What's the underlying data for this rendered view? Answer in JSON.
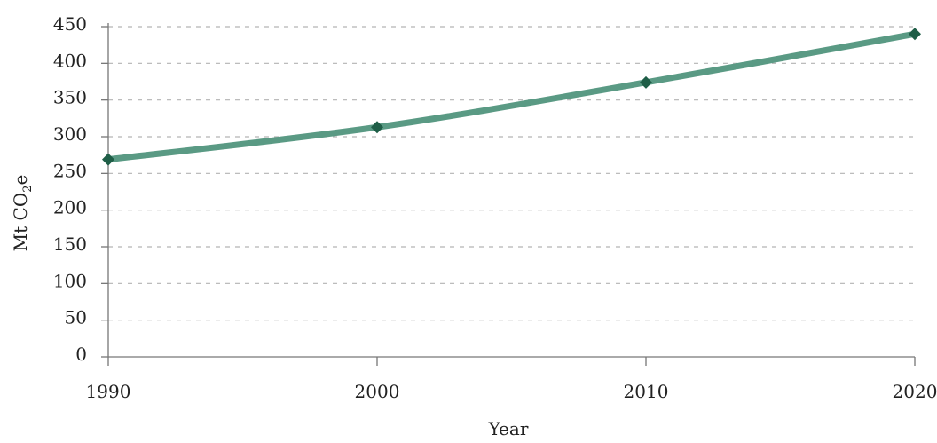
{
  "chart_data": {
    "type": "line",
    "title": "",
    "xlabel": "Year",
    "ylabel_main": "Mt CO",
    "ylabel_sub": "2",
    "ylabel_end": "e",
    "x": [
      1990,
      2000,
      2010,
      2020
    ],
    "x_tick_labels": [
      "1990",
      "2000",
      "2010",
      "2020"
    ],
    "y_ticks": [
      0,
      50,
      100,
      150,
      200,
      250,
      300,
      350,
      400,
      450
    ],
    "y_tick_labels": [
      "0",
      "50",
      "100",
      "150",
      "200",
      "250",
      "300",
      "350",
      "400",
      "450"
    ],
    "xlim": [
      1990,
      2020
    ],
    "ylim": [
      0,
      450
    ],
    "grid": true,
    "series": [
      {
        "values": [
          269,
          313,
          374,
          440
        ],
        "color": "#5a9a84",
        "marker_color": "#1f5e47"
      }
    ]
  }
}
